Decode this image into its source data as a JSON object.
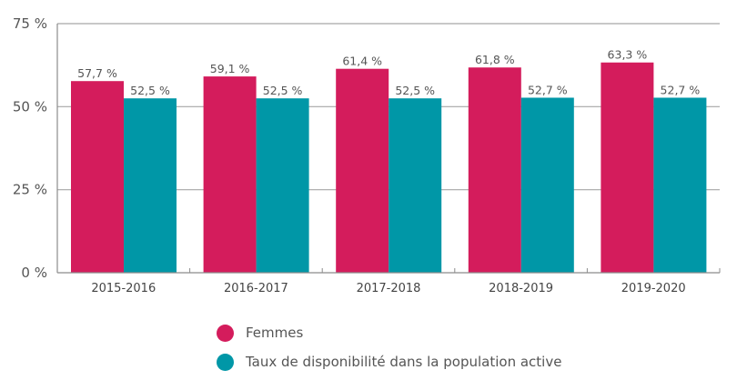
{
  "chart_data": {
    "type": "bar",
    "title": "",
    "xlabel": "",
    "ylabel": "",
    "ylim": [
      0,
      75
    ],
    "yticks": [
      0,
      25,
      50,
      75
    ],
    "ytick_labels": [
      "0 %",
      "25 %",
      "50 %",
      "75 %"
    ],
    "grid": true,
    "legend_position": "bottom",
    "categories": [
      "2015-2016",
      "2016-2017",
      "2017-2018",
      "2018-2019",
      "2019-2020"
    ],
    "series": [
      {
        "name": "Femmes",
        "color": "#d41c5c",
        "values": [
          57.7,
          59.1,
          61.4,
          61.8,
          63.3
        ],
        "labels": [
          "57,7 %",
          "59,1 %",
          "61,4 %",
          "61,8 %",
          "63,3 %"
        ]
      },
      {
        "name": "Taux de disponibilité dans la population active",
        "color": "#0097a7",
        "values": [
          52.5,
          52.5,
          52.5,
          52.7,
          52.7
        ],
        "labels": [
          "52,5 %",
          "52,5 %",
          "52,5 %",
          "52,7 %",
          "52,7 %"
        ]
      }
    ]
  }
}
